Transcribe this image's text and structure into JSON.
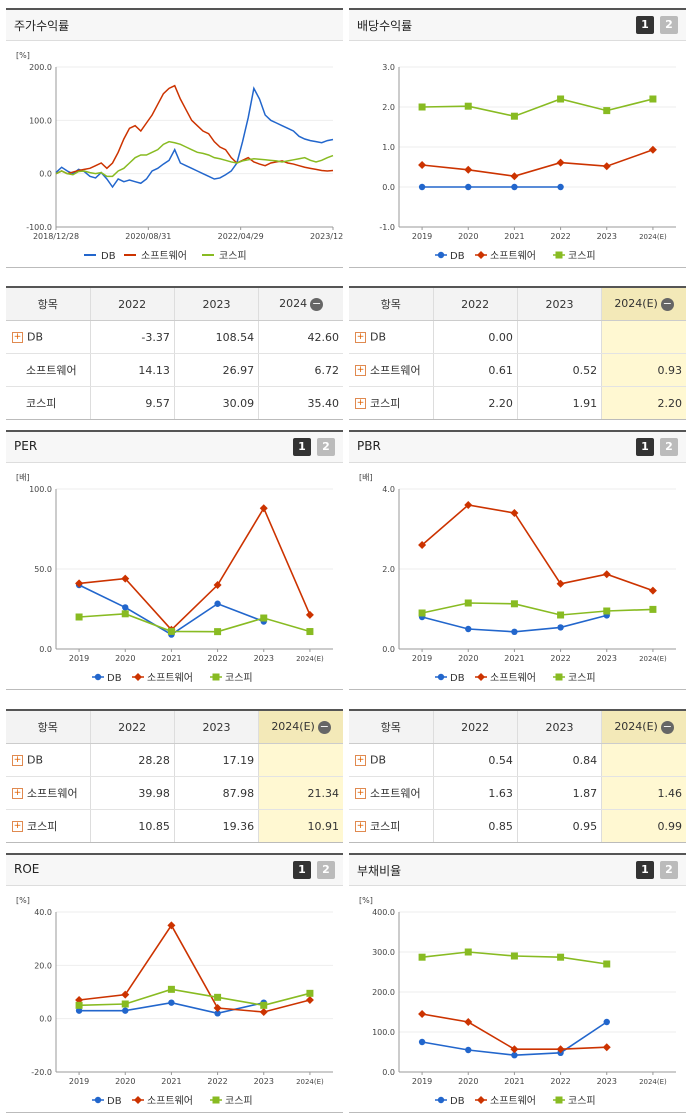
{
  "colors": {
    "DB": "#2266cc",
    "sw": "#cc3300",
    "kospi": "#88bb22"
  },
  "legend": [
    "DB",
    "소프트웨어",
    "코스피"
  ],
  "buttons": [
    "1",
    "2"
  ],
  "panels": [
    {
      "key": "stock",
      "title": "주가수익률",
      "buttons": false,
      "chart_data": {
        "type": "line",
        "unit": "[%]",
        "ylim": [
          -100,
          200
        ],
        "yticks": [
          "200.0",
          "100.0",
          "0.0",
          "-100.0"
        ],
        "xticks": [
          "2018/12/28",
          "2020/08/31",
          "2022/04/29",
          "2023/12/28"
        ],
        "n": 50,
        "series": [
          {
            "name": "DB",
            "values": [
              2,
              12,
              5,
              0,
              8,
              4,
              -5,
              -8,
              2,
              -10,
              -25,
              -10,
              -15,
              -12,
              -15,
              -18,
              -10,
              5,
              10,
              18,
              25,
              45,
              20,
              15,
              10,
              5,
              0,
              -5,
              -10,
              -8,
              -2,
              5,
              20,
              60,
              105,
              160,
              140,
              110,
              100,
              95,
              90,
              85,
              80,
              70,
              65,
              62,
              60,
              58,
              62,
              64
            ]
          },
          {
            "name": "소프트웨어",
            "values": [
              0,
              5,
              0,
              3,
              6,
              8,
              10,
              15,
              20,
              10,
              20,
              40,
              65,
              85,
              90,
              80,
              95,
              110,
              130,
              150,
              160,
              165,
              140,
              120,
              100,
              90,
              80,
              75,
              60,
              50,
              45,
              30,
              20,
              25,
              30,
              22,
              18,
              15,
              20,
              22,
              24,
              20,
              18,
              15,
              12,
              10,
              8,
              6,
              5,
              6
            ]
          },
          {
            "name": "코스피",
            "values": [
              0,
              5,
              0,
              -2,
              4,
              5,
              2,
              0,
              2,
              -5,
              -5,
              5,
              10,
              20,
              30,
              35,
              35,
              40,
              45,
              55,
              60,
              58,
              55,
              50,
              45,
              40,
              38,
              35,
              30,
              28,
              25,
              22,
              20,
              24,
              26,
              28,
              27,
              26,
              25,
              24,
              22,
              24,
              26,
              28,
              30,
              25,
              22,
              25,
              30,
              34
            ]
          }
        ]
      }
    },
    {
      "key": "div",
      "title": "배당수익률",
      "buttons": true,
      "chart_data": {
        "type": "line",
        "unit": "",
        "ylim": [
          -1,
          3
        ],
        "yticks": [
          "3.0",
          "2.0",
          "1.0",
          "0.0",
          "-1.0"
        ],
        "categories": [
          "2019",
          "2020",
          "2021",
          "2022",
          "2023",
          "2024(E)"
        ],
        "series": [
          {
            "name": "DB",
            "values": [
              0,
              0,
              0,
              0,
              null,
              null
            ]
          },
          {
            "name": "소프트웨어",
            "values": [
              0.55,
              0.43,
              0.27,
              0.61,
              0.52,
              0.93
            ]
          },
          {
            "name": "코스피",
            "values": [
              2.0,
              2.02,
              1.77,
              2.2,
              1.91,
              2.2
            ]
          }
        ]
      }
    },
    {
      "key": "per",
      "title": "PER",
      "buttons": true,
      "chart_data": {
        "type": "line",
        "unit": "[배]",
        "ylim": [
          0,
          100
        ],
        "yticks": [
          "100.0",
          "50.0",
          "0.0"
        ],
        "categories": [
          "2019",
          "2020",
          "2021",
          "2022",
          "2023",
          "2024(E)"
        ],
        "series": [
          {
            "name": "DB",
            "values": [
              40,
              26,
              9,
              28.28,
              17.19,
              null
            ]
          },
          {
            "name": "소프트웨어",
            "values": [
              41,
              44,
              12,
              39.98,
              87.98,
              21.34
            ]
          },
          {
            "name": "코스피",
            "values": [
              20,
              22,
              11,
              10.85,
              19.36,
              10.91
            ]
          }
        ]
      }
    },
    {
      "key": "pbr",
      "title": "PBR",
      "buttons": true,
      "chart_data": {
        "type": "line",
        "unit": "[배]",
        "ylim": [
          0,
          4
        ],
        "yticks": [
          "4.0",
          "2.0",
          "0.0"
        ],
        "categories": [
          "2019",
          "2020",
          "2021",
          "2022",
          "2023",
          "2024(E)"
        ],
        "series": [
          {
            "name": "DB",
            "values": [
              0.8,
              0.5,
              0.43,
              0.54,
              0.84,
              null
            ]
          },
          {
            "name": "소프트웨어",
            "values": [
              2.6,
              3.6,
              3.4,
              1.63,
              1.87,
              1.46
            ]
          },
          {
            "name": "코스피",
            "values": [
              0.9,
              1.15,
              1.13,
              0.85,
              0.95,
              0.99
            ]
          }
        ]
      }
    },
    {
      "key": "roe",
      "title": "ROE",
      "buttons": true,
      "chart_data": {
        "type": "line",
        "unit": "[%]",
        "ylim": [
          -20,
          40
        ],
        "yticks": [
          "40.0",
          "20.0",
          "0.0",
          "-20.0"
        ],
        "categories": [
          "2019",
          "2020",
          "2021",
          "2022",
          "2023",
          "2024(E)"
        ],
        "series": [
          {
            "name": "DB",
            "values": [
              3,
              3,
              6,
              2,
              6,
              null
            ]
          },
          {
            "name": "소프트웨어",
            "values": [
              7,
              9,
              35,
              4,
              2.5,
              7
            ]
          },
          {
            "name": "코스피",
            "values": [
              5,
              5.5,
              11,
              8,
              5,
              9.5
            ]
          }
        ]
      }
    },
    {
      "key": "debt",
      "title": "부채비율",
      "buttons": true,
      "chart_data": {
        "type": "line",
        "unit": "[%]",
        "ylim": [
          0,
          400
        ],
        "yticks": [
          "400.0",
          "300.0",
          "200.0",
          "100.0",
          "0.0"
        ],
        "categories": [
          "2019",
          "2020",
          "2021",
          "2022",
          "2023",
          "2024(E)"
        ],
        "series": [
          {
            "name": "DB",
            "values": [
              75,
              55,
              42,
              48,
              125,
              null
            ]
          },
          {
            "name": "소프트웨어",
            "values": [
              145,
              125,
              57,
              57,
              62,
              null
            ]
          },
          {
            "name": "코스피",
            "values": [
              287,
              300,
              290,
              287,
              270,
              null
            ]
          }
        ]
      }
    }
  ],
  "tables": [
    {
      "key": "t_stock",
      "headers": [
        "항목",
        "2022",
        "2023",
        "2024"
      ],
      "est": false,
      "rows": [
        {
          "name": "DB",
          "plus": true,
          "values": [
            "-3.37",
            "108.54",
            "42.60"
          ]
        },
        {
          "name": "소프트웨어",
          "plus": false,
          "values": [
            "14.13",
            "26.97",
            "6.72"
          ]
        },
        {
          "name": "코스피",
          "plus": false,
          "values": [
            "9.57",
            "30.09",
            "35.40"
          ]
        }
      ]
    },
    {
      "key": "t_div",
      "headers": [
        "항목",
        "2022",
        "2023",
        "2024(E)"
      ],
      "est": true,
      "rows": [
        {
          "name": "DB",
          "plus": true,
          "values": [
            "0.00",
            "",
            ""
          ]
        },
        {
          "name": "소프트웨어",
          "plus": true,
          "values": [
            "0.61",
            "0.52",
            "0.93"
          ]
        },
        {
          "name": "코스피",
          "plus": true,
          "values": [
            "2.20",
            "1.91",
            "2.20"
          ]
        }
      ]
    },
    {
      "key": "t_per",
      "headers": [
        "항목",
        "2022",
        "2023",
        "2024(E)"
      ],
      "est": true,
      "rows": [
        {
          "name": "DB",
          "plus": true,
          "values": [
            "28.28",
            "17.19",
            ""
          ]
        },
        {
          "name": "소프트웨어",
          "plus": true,
          "values": [
            "39.98",
            "87.98",
            "21.34"
          ]
        },
        {
          "name": "코스피",
          "plus": true,
          "values": [
            "10.85",
            "19.36",
            "10.91"
          ]
        }
      ]
    },
    {
      "key": "t_pbr",
      "headers": [
        "항목",
        "2022",
        "2023",
        "2024(E)"
      ],
      "est": true,
      "rows": [
        {
          "name": "DB",
          "plus": true,
          "values": [
            "0.54",
            "0.84",
            ""
          ]
        },
        {
          "name": "소프트웨어",
          "plus": true,
          "values": [
            "1.63",
            "1.87",
            "1.46"
          ]
        },
        {
          "name": "코스피",
          "plus": true,
          "values": [
            "0.85",
            "0.95",
            "0.99"
          ]
        }
      ]
    }
  ]
}
